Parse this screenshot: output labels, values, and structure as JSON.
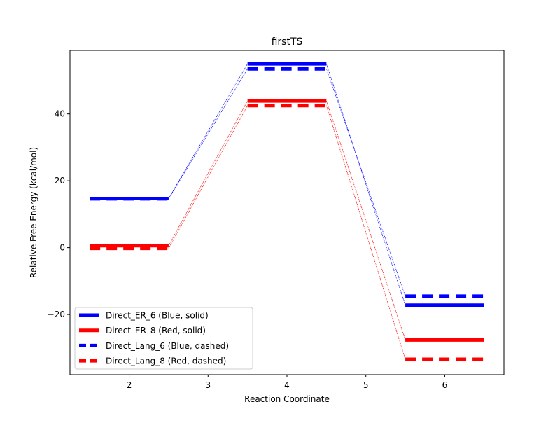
{
  "chart_data": {
    "type": "line",
    "title": "firstTS",
    "xlabel": "Reaction Coordinate",
    "ylabel": "Relative Free Energy (kcal/mol)",
    "xlim": [
      1.25,
      6.75
    ],
    "ylim": [
      -38,
      59
    ],
    "xticks": [
      2,
      3,
      4,
      5,
      6
    ],
    "yticks": [
      -20,
      0,
      20,
      40
    ],
    "level_halfwidth": 0.5,
    "grid": false,
    "legend_position": "lower-left",
    "series": [
      {
        "name": "Direct_ER_6 (Blue, solid)",
        "color": "#0000ff",
        "dashed": false,
        "points": [
          {
            "x": 2,
            "y": 14.7
          },
          {
            "x": 4,
            "y": 55.0
          },
          {
            "x": 6,
            "y": -17.2
          }
        ]
      },
      {
        "name": "Direct_ER_8 (Red, solid)",
        "color": "#ff0000",
        "dashed": false,
        "points": [
          {
            "x": 2,
            "y": 0.6
          },
          {
            "x": 4,
            "y": 43.9
          },
          {
            "x": 6,
            "y": -27.6
          }
        ]
      },
      {
        "name": "Direct_Lang_6 (Blue, dashed)",
        "color": "#0000ff",
        "dashed": true,
        "points": [
          {
            "x": 2,
            "y": 14.6
          },
          {
            "x": 4,
            "y": 53.5
          },
          {
            "x": 6,
            "y": -14.5
          }
        ]
      },
      {
        "name": "Direct_Lang_8 (Red, dashed)",
        "color": "#ff0000",
        "dashed": true,
        "points": [
          {
            "x": 2,
            "y": -0.2
          },
          {
            "x": 4,
            "y": 42.5
          },
          {
            "x": 6,
            "y": -33.4
          }
        ]
      }
    ]
  }
}
